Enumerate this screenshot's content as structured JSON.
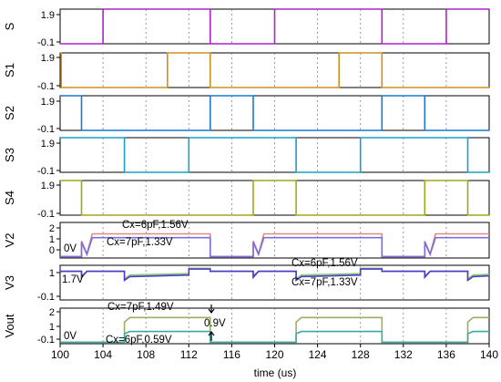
{
  "chart_data": {
    "type": "line",
    "xlabel": "time (us)",
    "xlim": [
      100,
      140
    ],
    "xticks": [
      "100",
      "104",
      "108",
      "112",
      "116",
      "120",
      "124",
      "128",
      "132",
      "136",
      "140"
    ],
    "grid": true,
    "panels": [
      {
        "ylabel": "S",
        "ylim": [
          -0.1,
          1.9
        ],
        "yticks": [
          "1.9",
          "-0.1"
        ],
        "series": [
          {
            "color": "#b020d0",
            "points": [
              [
                100,
                -0.1
              ],
              [
                104,
                -0.1
              ],
              [
                104,
                1.9
              ],
              [
                114,
                1.9
              ],
              [
                114,
                -0.1
              ],
              [
                120,
                -0.1
              ],
              [
                120,
                1.9
              ],
              [
                130,
                1.9
              ],
              [
                130,
                -0.1
              ],
              [
                136,
                -0.1
              ],
              [
                136,
                1.9
              ],
              [
                140,
                1.9
              ]
            ]
          }
        ]
      },
      {
        "ylabel": "S1",
        "ylim": [
          -0.1,
          1.9
        ],
        "yticks": [
          "1.9",
          "-0.1"
        ],
        "series": [
          {
            "color": "#d09020",
            "points": [
              [
                100,
                1.9
              ],
              [
                100.1,
                1.9
              ],
              [
                100.1,
                -0.1
              ],
              [
                110,
                -0.1
              ],
              [
                110,
                1.9
              ],
              [
                114,
                1.9
              ],
              [
                114,
                -0.1
              ],
              [
                126,
                -0.1
              ],
              [
                126,
                1.9
              ],
              [
                130,
                1.9
              ],
              [
                130,
                -0.1
              ],
              [
                140,
                -0.1
              ]
            ]
          }
        ]
      },
      {
        "ylabel": "S2",
        "ylim": [
          -0.1,
          1.9
        ],
        "yticks": [
          "1.9",
          "-0.1"
        ],
        "series": [
          {
            "color": "#1f77d0",
            "points": [
              [
                100,
                1.9
              ],
              [
                102,
                1.9
              ],
              [
                102,
                -0.1
              ],
              [
                114,
                -0.1
              ],
              [
                114,
                1.9
              ],
              [
                118,
                1.9
              ],
              [
                118,
                -0.1
              ],
              [
                130,
                -0.1
              ],
              [
                130,
                1.9
              ],
              [
                134,
                1.9
              ],
              [
                134,
                -0.1
              ],
              [
                140,
                -0.1
              ]
            ]
          }
        ]
      },
      {
        "ylabel": "S3",
        "ylim": [
          -0.1,
          1.9
        ],
        "yticks": [
          "1.9",
          "-0.1"
        ],
        "series": [
          {
            "color": "#1aa0c8",
            "points": [
              [
                100,
                1.9
              ],
              [
                106,
                1.9
              ],
              [
                106,
                -0.1
              ],
              [
                112,
                -0.1
              ],
              [
                112,
                1.9
              ],
              [
                122,
                1.9
              ],
              [
                122,
                -0.1
              ],
              [
                128,
                -0.1
              ],
              [
                128,
                1.9
              ],
              [
                138,
                1.9
              ],
              [
                138,
                -0.1
              ],
              [
                140,
                -0.1
              ]
            ]
          }
        ]
      },
      {
        "ylabel": "S4",
        "ylim": [
          -0.1,
          1.9
        ],
        "yticks": [
          "1.9",
          "-0.1"
        ],
        "series": [
          {
            "color": "#a0a818",
            "points": [
              [
                100,
                1.9
              ],
              [
                102,
                1.9
              ],
              [
                102,
                -0.1
              ],
              [
                118,
                -0.1
              ],
              [
                118,
                1.9
              ],
              [
                122,
                1.9
              ],
              [
                122,
                -0.1
              ],
              [
                134,
                -0.1
              ],
              [
                134,
                1.9
              ],
              [
                138,
                1.9
              ],
              [
                138,
                -0.1
              ],
              [
                140,
                -0.1
              ]
            ]
          }
        ]
      },
      {
        "ylabel": "V2",
        "ylim": [
          -0.1,
          2.4
        ],
        "yticks": [
          "2",
          "1",
          "0"
        ],
        "series": [
          {
            "color": "#e08a80",
            "points": [
              [
                100,
                0
              ],
              [
                102,
                0
              ],
              [
                102,
                1.1
              ],
              [
                102.5,
                0.2
              ],
              [
                103,
                1.6
              ],
              [
                114,
                1.6
              ],
              [
                114,
                0
              ],
              [
                118,
                0
              ],
              [
                118,
                1.1
              ],
              [
                118.5,
                0.2
              ],
              [
                119,
                1.6
              ],
              [
                130,
                1.6
              ],
              [
                130,
                0
              ],
              [
                134,
                0
              ],
              [
                134,
                1.1
              ],
              [
                134.5,
                0.2
              ],
              [
                135,
                1.6
              ],
              [
                140,
                1.6
              ]
            ]
          },
          {
            "color": "#7a6fe0",
            "points": [
              [
                100,
                0
              ],
              [
                102,
                0
              ],
              [
                102,
                1.0
              ],
              [
                102.5,
                0.15
              ],
              [
                103,
                1.33
              ],
              [
                114,
                1.33
              ],
              [
                114,
                0
              ],
              [
                118,
                0
              ],
              [
                118,
                1.0
              ],
              [
                118.5,
                0.15
              ],
              [
                119,
                1.33
              ],
              [
                130,
                1.33
              ],
              [
                130,
                0
              ],
              [
                134,
                0
              ],
              [
                134,
                1.0
              ],
              [
                134.5,
                0.15
              ],
              [
                135,
                1.33
              ],
              [
                140,
                1.33
              ]
            ]
          }
        ],
        "annotations": [
          "Cx=6pF,1.56V",
          "Cx=7pF,1.33V",
          "0V"
        ]
      },
      {
        "ylabel": "V3",
        "ylim": [
          -0.2,
          2.1
        ],
        "yticks": [
          "1",
          "-0.1"
        ],
        "series": [
          {
            "color": "#88c870",
            "points": [
              [
                100,
                1.7
              ],
              [
                102,
                1.7
              ],
              [
                102,
                1.4
              ],
              [
                102.5,
                1.7
              ],
              [
                106,
                1.7
              ],
              [
                106,
                1.2
              ],
              [
                106.5,
                1.45
              ],
              [
                112,
                1.55
              ],
              [
                112,
                1.9
              ],
              [
                114,
                1.9
              ],
              [
                114,
                1.7
              ],
              [
                118,
                1.7
              ],
              [
                118,
                1.4
              ],
              [
                118.5,
                1.7
              ],
              [
                122,
                1.7
              ],
              [
                122,
                1.2
              ],
              [
                122.5,
                1.45
              ],
              [
                128,
                1.55
              ],
              [
                128,
                1.9
              ],
              [
                130,
                1.9
              ],
              [
                130,
                1.7
              ],
              [
                134,
                1.7
              ],
              [
                134,
                1.4
              ],
              [
                134.5,
                1.7
              ],
              [
                138,
                1.7
              ],
              [
                138,
                1.2
              ],
              [
                138.5,
                1.45
              ],
              [
                140,
                1.5
              ]
            ]
          },
          {
            "color": "#4a3ad0",
            "points": [
              [
                100,
                1.7
              ],
              [
                102,
                1.7
              ],
              [
                102,
                1.3
              ],
              [
                102.5,
                1.7
              ],
              [
                106,
                1.7
              ],
              [
                106,
                1.1
              ],
              [
                106.5,
                1.35
              ],
              [
                112,
                1.45
              ],
              [
                112,
                1.85
              ],
              [
                114,
                1.85
              ],
              [
                114,
                1.7
              ],
              [
                118,
                1.7
              ],
              [
                118,
                1.3
              ],
              [
                118.5,
                1.7
              ],
              [
                122,
                1.7
              ],
              [
                122,
                1.1
              ],
              [
                122.5,
                1.35
              ],
              [
                128,
                1.45
              ],
              [
                128,
                1.85
              ],
              [
                130,
                1.85
              ],
              [
                130,
                1.7
              ],
              [
                134,
                1.7
              ],
              [
                134,
                1.3
              ],
              [
                134.5,
                1.7
              ],
              [
                138,
                1.7
              ],
              [
                138,
                1.1
              ],
              [
                138.5,
                1.35
              ],
              [
                140,
                1.4
              ]
            ]
          }
        ],
        "annotations": [
          "1.7V",
          "Cx=6pF,1.56V",
          "Cx=7pF,1.33V"
        ]
      },
      {
        "ylabel": "Vout",
        "ylim": [
          -0.2,
          2.1
        ],
        "yticks": [
          "2",
          "1",
          "-0.1"
        ],
        "series": [
          {
            "color": "#9ab060",
            "points": [
              [
                100,
                -0.1
              ],
              [
                106,
                -0.1
              ],
              [
                106,
                1.2
              ],
              [
                106.5,
                1.49
              ],
              [
                114,
                1.49
              ],
              [
                114,
                -0.1
              ],
              [
                122,
                -0.1
              ],
              [
                122,
                1.2
              ],
              [
                122.5,
                1.49
              ],
              [
                130,
                1.49
              ],
              [
                130,
                -0.1
              ],
              [
                138,
                -0.1
              ],
              [
                138,
                1.2
              ],
              [
                138.5,
                1.49
              ],
              [
                140,
                1.49
              ]
            ]
          },
          {
            "color": "#40a8a0",
            "points": [
              [
                100,
                -0.1
              ],
              [
                106,
                -0.1
              ],
              [
                106,
                0.45
              ],
              [
                106.5,
                0.59
              ],
              [
                114,
                0.59
              ],
              [
                114,
                -0.1
              ],
              [
                122,
                -0.1
              ],
              [
                122,
                0.45
              ],
              [
                122.5,
                0.59
              ],
              [
                130,
                0.59
              ],
              [
                130,
                -0.1
              ],
              [
                138,
                -0.1
              ],
              [
                138,
                0.45
              ],
              [
                138.5,
                0.59
              ],
              [
                140,
                0.59
              ]
            ]
          }
        ],
        "annotations": [
          "Cx=7pF,1.49V",
          "Cx=6pF,0.59V",
          "0V",
          "0.9V"
        ]
      }
    ]
  }
}
